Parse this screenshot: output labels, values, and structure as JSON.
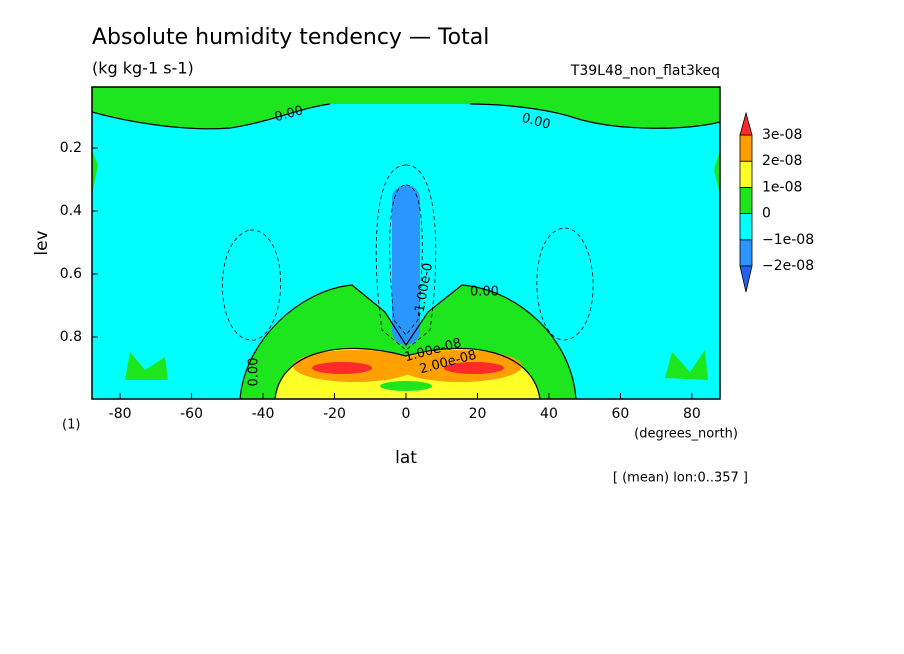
{
  "chart_data": {
    "type": "contour",
    "title": "Absolute humidity tendency — Total",
    "subtitle": "(kg kg-1 s-1)",
    "run_name": "T39L48_non_flat3keq",
    "x_label": "lat",
    "x_unit": "(degrees_north)",
    "y_label": "lev",
    "y_unit": "(1)",
    "footnote": "[ (mean) lon:0..357 ]",
    "xlim": [
      -87.86,
      87.86
    ],
    "xticks": [
      -80,
      -60,
      -40,
      -20,
      0,
      20,
      40,
      60,
      80
    ],
    "ylim": [
      0.006,
      0.997
    ],
    "y_inverted": true,
    "yticks": [
      0.2,
      0.4,
      0.6,
      0.8
    ],
    "contour_labels": [
      "0.00",
      "0.00",
      "0.00",
      "0.00",
      "-1.00e-0",
      "1.00e-08",
      "2.00e-08"
    ],
    "colorbar": {
      "levels": [
        {
          "value": -2e-08,
          "label": "−2e-08"
        },
        {
          "value": -1e-08,
          "label": "−1e-08"
        },
        0,
        {
          "value": 1e-08,
          "label": "1e-08"
        },
        {
          "value": 2e-08,
          "label": "2e-08"
        },
        {
          "value": 3e-08,
          "label": "3e-08"
        }
      ],
      "colors": [
        "#1e64f0",
        "#2a96ff",
        "#00ffff",
        "#1ee61e",
        "#ffff28",
        "#ff9f00",
        "#ff2a2a"
      ]
    }
  }
}
